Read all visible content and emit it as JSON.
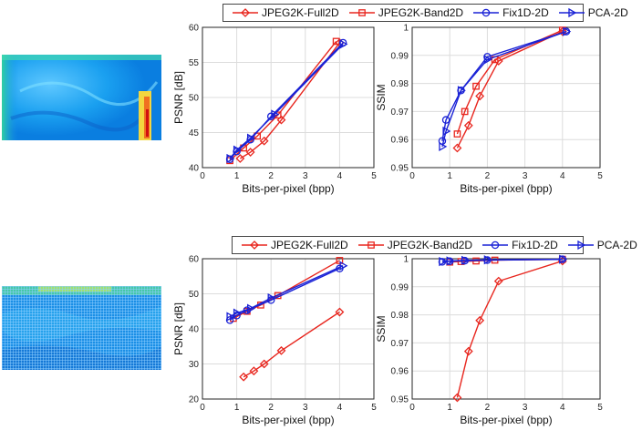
{
  "legend": [
    {
      "label": "JPEG2K-Full2D",
      "color": "#e8261e",
      "marker": "diamond"
    },
    {
      "label": "JPEG2K-Band2D",
      "color": "#e8261e",
      "marker": "square"
    },
    {
      "label": "Fix1D-2D",
      "color": "#1a22d6",
      "marker": "circle"
    },
    {
      "label": "PCA-2D",
      "color": "#1a22d6",
      "marker": "triangle-right"
    }
  ],
  "images": [
    {
      "description_colormap": "jet"
    },
    {
      "description_colormap": "jet"
    }
  ],
  "chart_data": [
    {
      "type": "line",
      "xlabel": "Bits-per-pixel (bpp)",
      "ylabel": "PSNR [dB]",
      "xlim": [
        0,
        5
      ],
      "ylim": [
        40,
        60
      ],
      "xticks": [
        0,
        1,
        2,
        3,
        4,
        5
      ],
      "yticks": [
        40,
        45,
        50,
        55,
        60
      ],
      "grid": true,
      "series": [
        {
          "name": "JPEG2K-Full2D",
          "x": [
            1.1,
            1.4,
            1.8,
            2.3,
            4.0
          ],
          "y": [
            41.3,
            42.2,
            43.8,
            46.8,
            57.8
          ]
        },
        {
          "name": "JPEG2K-Band2D",
          "x": [
            0.8,
            1.2,
            1.6,
            2.2,
            3.9
          ],
          "y": [
            41.0,
            42.8,
            44.5,
            47.5,
            58.0
          ]
        },
        {
          "name": "Fix1D-2D",
          "x": [
            0.8,
            1.0,
            1.4,
            2.0,
            4.1
          ],
          "y": [
            41.2,
            42.3,
            44.0,
            47.3,
            57.8
          ]
        },
        {
          "name": "PCA-2D",
          "x": [
            0.8,
            1.0,
            1.4,
            2.1,
            4.1
          ],
          "y": [
            41.3,
            42.5,
            44.2,
            47.6,
            57.6
          ]
        }
      ]
    },
    {
      "type": "line",
      "xlabel": "Bits-per-pixel (bpp)",
      "ylabel": "SSIM",
      "xlim": [
        0,
        5
      ],
      "ylim": [
        0.95,
        1.0
      ],
      "xticks": [
        0,
        1,
        2,
        3,
        4,
        5
      ],
      "yticks": [
        0.95,
        0.96,
        0.97,
        0.98,
        0.99,
        1.0
      ],
      "ytick_labels": [
        "0.95",
        "0.96",
        "0.97",
        "0.98",
        "0.99",
        "1"
      ],
      "grid": true,
      "series": [
        {
          "name": "JPEG2K-Full2D",
          "x": [
            1.2,
            1.5,
            1.8,
            2.3,
            4.0
          ],
          "y": [
            0.957,
            0.965,
            0.9755,
            0.988,
            0.9985
          ]
        },
        {
          "name": "JPEG2K-Band2D",
          "x": [
            1.2,
            1.4,
            1.7,
            2.2,
            4.0
          ],
          "y": [
            0.962,
            0.97,
            0.979,
            0.9885,
            0.999
          ]
        },
        {
          "name": "Fix1D-2D",
          "x": [
            0.8,
            0.9,
            1.3,
            2.0,
            4.1
          ],
          "y": [
            0.9595,
            0.967,
            0.9775,
            0.9895,
            0.9985
          ]
        },
        {
          "name": "PCA-2D",
          "x": [
            0.8,
            0.9,
            1.3,
            2.0,
            4.1
          ],
          "y": [
            0.9575,
            0.963,
            0.9775,
            0.9885,
            0.9985
          ]
        }
      ]
    },
    {
      "type": "line",
      "xlabel": "Bits-per-pixel (bpp)",
      "ylabel": "PSNR [dB]",
      "xlim": [
        0,
        5
      ],
      "ylim": [
        20,
        60
      ],
      "xticks": [
        0,
        1,
        2,
        3,
        4,
        5
      ],
      "yticks": [
        20,
        30,
        40,
        50,
        60
      ],
      "grid": true,
      "series": [
        {
          "name": "JPEG2K-Full2D",
          "x": [
            1.2,
            1.5,
            1.8,
            2.3,
            4.0
          ],
          "y": [
            26.3,
            28.0,
            30.0,
            33.8,
            44.8
          ]
        },
        {
          "name": "JPEG2K-Band2D",
          "x": [
            0.9,
            1.3,
            1.7,
            2.2,
            4.0
          ],
          "y": [
            43.0,
            45.0,
            46.8,
            49.5,
            59.5
          ]
        },
        {
          "name": "Fix1D-2D",
          "x": [
            0.8,
            1.0,
            1.3,
            2.0,
            4.0
          ],
          "y": [
            42.5,
            43.8,
            45.3,
            48.2,
            57.2
          ]
        },
        {
          "name": "PCA-2D",
          "x": [
            0.8,
            1.0,
            1.4,
            2.0,
            4.1
          ],
          "y": [
            43.5,
            44.5,
            45.8,
            48.8,
            58.0
          ]
        }
      ]
    },
    {
      "type": "line",
      "xlabel": "Bits-per-pixel (bpp)",
      "ylabel": "SSIM",
      "xlim": [
        0,
        5
      ],
      "ylim": [
        0.95,
        1.0
      ],
      "xticks": [
        0,
        1,
        2,
        3,
        4,
        5
      ],
      "yticks": [
        0.95,
        0.96,
        0.97,
        0.98,
        0.99,
        1.0
      ],
      "ytick_labels": [
        "0.95",
        "0.96",
        "0.97",
        "0.98",
        "0.99",
        "1"
      ],
      "grid": true,
      "series": [
        {
          "name": "JPEG2K-Full2D",
          "x": [
            1.2,
            1.5,
            1.8,
            2.3,
            4.0
          ],
          "y": [
            0.9505,
            0.967,
            0.978,
            0.992,
            0.9992
          ]
        },
        {
          "name": "JPEG2K-Band2D",
          "x": [
            1.0,
            1.3,
            1.7,
            2.2,
            4.0
          ],
          "y": [
            0.9988,
            0.999,
            0.9992,
            0.9995,
            0.9998
          ]
        },
        {
          "name": "Fix1D-2D",
          "x": [
            0.8,
            1.0,
            1.4,
            2.0,
            4.0
          ],
          "y": [
            0.9989,
            0.9991,
            0.9993,
            0.9995,
            0.9998
          ]
        },
        {
          "name": "PCA-2D",
          "x": [
            0.8,
            1.0,
            1.4,
            2.0,
            4.0
          ],
          "y": [
            0.999,
            0.9992,
            0.9994,
            0.9996,
            0.9998
          ]
        }
      ]
    }
  ]
}
